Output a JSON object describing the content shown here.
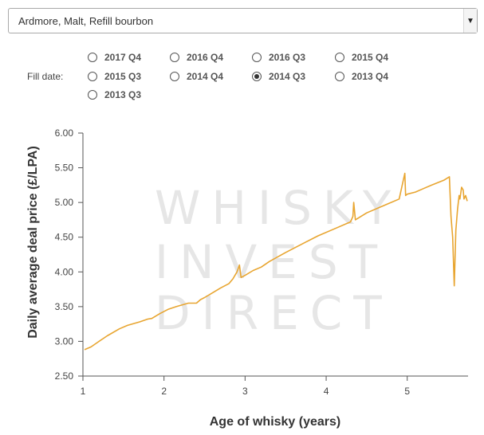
{
  "select": {
    "value": "Ardmore,  Malt,  Refill bourbon"
  },
  "fill_date": {
    "label": "Fill date:",
    "options": [
      {
        "label": "2017 Q4",
        "selected": false
      },
      {
        "label": "2016 Q4",
        "selected": false
      },
      {
        "label": "2016 Q3",
        "selected": false
      },
      {
        "label": "2015 Q4",
        "selected": false
      },
      {
        "label": "2015 Q3",
        "selected": false
      },
      {
        "label": "2014 Q4",
        "selected": false
      },
      {
        "label": "2014 Q3",
        "selected": true
      },
      {
        "label": "2013 Q4",
        "selected": false
      },
      {
        "label": "2013 Q3",
        "selected": false
      }
    ]
  },
  "watermark": [
    "WHISKY",
    "INVEST",
    "DIRECT"
  ],
  "chart_data": {
    "type": "line",
    "title": "",
    "xlabel": "Age of whisky (years)",
    "ylabel": "Daily average deal price (£/LPA)",
    "xlim": [
      1,
      5.75
    ],
    "ylim": [
      2.5,
      6.0
    ],
    "xticks": [
      "1",
      "2",
      "3",
      "4",
      "5"
    ],
    "yticks": [
      "2.50",
      "3.00",
      "3.50",
      "4.00",
      "4.50",
      "5.00",
      "5.50",
      "6.00"
    ],
    "grid": false,
    "color": "#E8A530",
    "series": [
      {
        "x": [
          1.02,
          1.1,
          1.2,
          1.3,
          1.45,
          1.55,
          1.7,
          1.8,
          1.85,
          1.95,
          2.05,
          2.15,
          2.3,
          2.4,
          2.45,
          2.5,
          2.6,
          2.7,
          2.8,
          2.85,
          2.9,
          2.93,
          2.95,
          3.0,
          3.1,
          3.2,
          3.3,
          3.5,
          3.7,
          3.9,
          4.1,
          4.3,
          4.33,
          4.34,
          4.36,
          4.5,
          4.7,
          4.9,
          4.97,
          4.98,
          5.0,
          5.1,
          5.2,
          5.3,
          5.45,
          5.52,
          5.54,
          5.56,
          5.58,
          5.6,
          5.62,
          5.64,
          5.65,
          5.67,
          5.69,
          5.7,
          5.72,
          5.74
        ],
        "y": [
          2.88,
          2.92,
          3.0,
          3.08,
          3.18,
          3.23,
          3.28,
          3.32,
          3.33,
          3.4,
          3.46,
          3.5,
          3.55,
          3.55,
          3.6,
          3.63,
          3.7,
          3.77,
          3.83,
          3.9,
          4.0,
          4.1,
          3.92,
          3.95,
          4.02,
          4.07,
          4.15,
          4.28,
          4.4,
          4.52,
          4.62,
          4.72,
          4.8,
          5.0,
          4.75,
          4.85,
          4.95,
          5.05,
          5.42,
          5.1,
          5.12,
          5.15,
          5.2,
          5.25,
          5.32,
          5.37,
          4.8,
          4.5,
          3.8,
          4.6,
          4.9,
          5.1,
          5.05,
          5.22,
          5.18,
          5.05,
          5.1,
          5.02
        ]
      }
    ]
  }
}
